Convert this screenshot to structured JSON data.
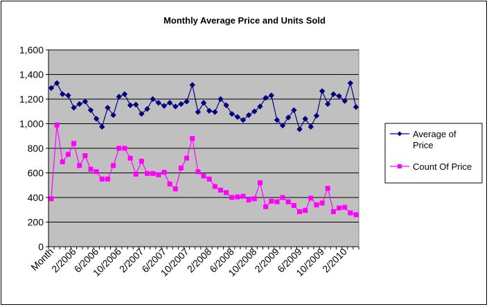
{
  "chart_data": {
    "type": "line",
    "title": "Monthly Average Price and Units Sold",
    "xlabel": "",
    "ylabel": "",
    "ylim": [
      0,
      1600
    ],
    "yticks": [
      0,
      200,
      400,
      600,
      800,
      1000,
      1200,
      1400,
      1600
    ],
    "ytick_labels": [
      "0",
      "200",
      "400",
      "600",
      "800",
      "1,000",
      "1,200",
      "1,400",
      "1,600"
    ],
    "xtick_labels": [
      "Month",
      "2/2006",
      "6/2006",
      "10/2006",
      "2/2007",
      "6/2007",
      "10/2007",
      "2/2008",
      "6/2008",
      "10/2008",
      "2/2009",
      "6/2009",
      "10/2009",
      "2/2010"
    ],
    "grid": "horizontal",
    "plot_background": "#c0c0c0",
    "legend_placement": "right",
    "series": [
      {
        "name": "Average of Price",
        "color": "#000080",
        "marker": "diamond",
        "values": [
          1290,
          1330,
          1240,
          1230,
          1130,
          1160,
          1180,
          1110,
          1040,
          975,
          1130,
          1070,
          1220,
          1240,
          1150,
          1155,
          1080,
          1120,
          1200,
          1170,
          1145,
          1170,
          1140,
          1160,
          1180,
          1315,
          1095,
          1170,
          1105,
          1095,
          1200,
          1150,
          1080,
          1055,
          1030,
          1070,
          1100,
          1140,
          1210,
          1230,
          1030,
          985,
          1050,
          1110,
          955,
          1040,
          975,
          1065,
          1265,
          1160,
          1240,
          1225,
          1185,
          1330,
          1135
        ]
      },
      {
        "name": "Count Of Price",
        "color": "#ff00ff",
        "marker": "square",
        "values": [
          390,
          990,
          690,
          750,
          840,
          660,
          740,
          630,
          610,
          550,
          550,
          660,
          800,
          800,
          720,
          590,
          695,
          595,
          595,
          585,
          605,
          510,
          470,
          640,
          720,
          880,
          610,
          575,
          550,
          490,
          460,
          440,
          400,
          405,
          410,
          380,
          390,
          520,
          325,
          370,
          365,
          400,
          365,
          335,
          285,
          295,
          395,
          340,
          355,
          475,
          285,
          315,
          320,
          275,
          260
        ]
      }
    ]
  }
}
